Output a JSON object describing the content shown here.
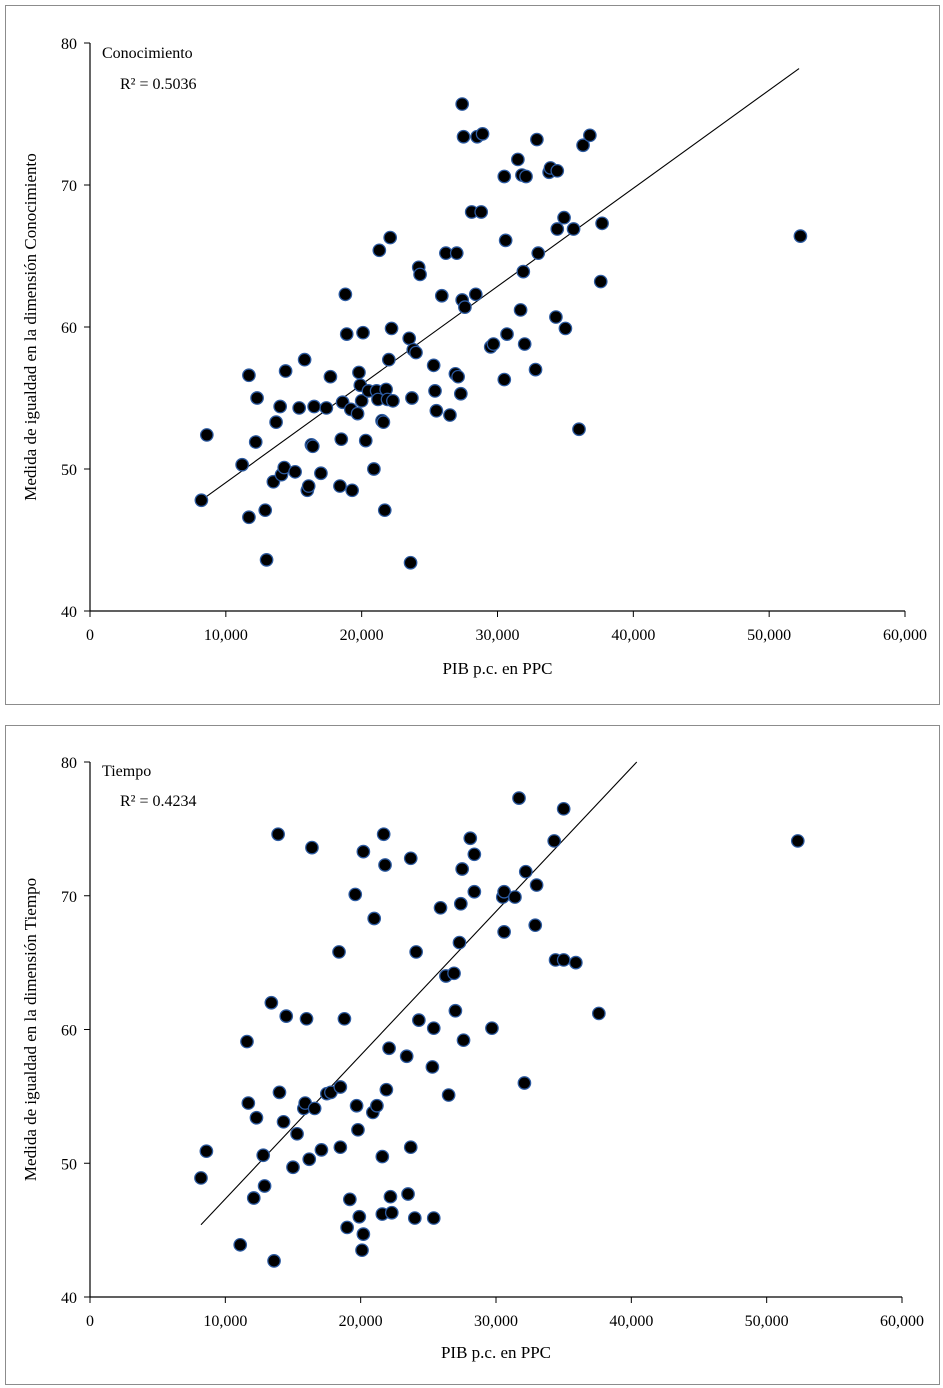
{
  "chart_data": [
    {
      "type": "scatter",
      "annotation": "Conocimiento",
      "r_squared_label": "R² = 0.5036",
      "xlabel": "PIB p.c. en PPC",
      "ylabel": "Medida de igualdad en la dimensión Conocimiento",
      "xlim": [
        0,
        60000
      ],
      "ylim": [
        40,
        80
      ],
      "x_ticks": [
        0,
        10000,
        20000,
        30000,
        40000,
        50000,
        60000
      ],
      "x_tick_labels": [
        "0",
        "10,000",
        "20,000",
        "30,000",
        "40,000",
        "50,000",
        "60,000"
      ],
      "y_ticks": [
        40,
        50,
        60,
        70,
        80
      ],
      "y_tick_labels": [
        "40",
        "50",
        "60",
        "70",
        "80"
      ],
      "trendline": {
        "x": [
          8200,
          52200
        ],
        "y": [
          47.8,
          78.2
        ]
      },
      "marker_color": "#000000",
      "marker_edge": "#2c5aa0",
      "points": [
        [
          8200,
          47.8
        ],
        [
          8600,
          52.4
        ],
        [
          11200,
          50.3
        ],
        [
          11700,
          56.6
        ],
        [
          11700,
          46.6
        ],
        [
          12200,
          51.9
        ],
        [
          12300,
          55.0
        ],
        [
          12900,
          47.1
        ],
        [
          13000,
          43.6
        ],
        [
          13500,
          49.1
        ],
        [
          13700,
          53.3
        ],
        [
          14000,
          54.4
        ],
        [
          14100,
          49.6
        ],
        [
          14300,
          50.1
        ],
        [
          14400,
          56.9
        ],
        [
          15100,
          49.8
        ],
        [
          15400,
          54.3
        ],
        [
          15800,
          57.7
        ],
        [
          16000,
          48.5
        ],
        [
          16100,
          48.8
        ],
        [
          16300,
          51.7
        ],
        [
          16400,
          51.6
        ],
        [
          16500,
          54.4
        ],
        [
          17000,
          49.7
        ],
        [
          17400,
          54.3
        ],
        [
          17700,
          56.5
        ],
        [
          18400,
          48.8
        ],
        [
          18500,
          52.1
        ],
        [
          18600,
          54.7
        ],
        [
          18800,
          62.3
        ],
        [
          18900,
          59.5
        ],
        [
          19200,
          54.2
        ],
        [
          19300,
          48.5
        ],
        [
          19700,
          53.9
        ],
        [
          19800,
          56.8
        ],
        [
          19900,
          55.9
        ],
        [
          20000,
          54.8
        ],
        [
          20100,
          59.6
        ],
        [
          20300,
          52.0
        ],
        [
          20500,
          55.5
        ],
        [
          20900,
          50.0
        ],
        [
          21100,
          55.5
        ],
        [
          21200,
          54.9
        ],
        [
          21300,
          65.4
        ],
        [
          21500,
          53.4
        ],
        [
          21600,
          53.3
        ],
        [
          21700,
          47.1
        ],
        [
          21800,
          55.6
        ],
        [
          21900,
          54.9
        ],
        [
          22000,
          57.7
        ],
        [
          22100,
          66.3
        ],
        [
          22200,
          59.9
        ],
        [
          22300,
          54.8
        ],
        [
          23500,
          59.2
        ],
        [
          23600,
          43.4
        ],
        [
          23700,
          55.0
        ],
        [
          23800,
          58.4
        ],
        [
          24000,
          58.2
        ],
        [
          24200,
          64.2
        ],
        [
          24300,
          63.7
        ],
        [
          25300,
          57.3
        ],
        [
          25400,
          55.5
        ],
        [
          25500,
          54.1
        ],
        [
          25900,
          62.2
        ],
        [
          26200,
          65.2
        ],
        [
          26500,
          53.8
        ],
        [
          26900,
          56.7
        ],
        [
          27000,
          65.2
        ],
        [
          27100,
          56.5
        ],
        [
          27300,
          55.3
        ],
        [
          27400,
          61.9
        ],
        [
          27400,
          75.7
        ],
        [
          27500,
          73.4
        ],
        [
          27600,
          61.4
        ],
        [
          28100,
          68.1
        ],
        [
          28400,
          62.3
        ],
        [
          28500,
          73.4
        ],
        [
          28800,
          68.1
        ],
        [
          28900,
          73.6
        ],
        [
          29500,
          58.6
        ],
        [
          29700,
          58.8
        ],
        [
          30500,
          56.3
        ],
        [
          30500,
          70.6
        ],
        [
          30600,
          66.1
        ],
        [
          30700,
          59.5
        ],
        [
          31500,
          71.8
        ],
        [
          31700,
          61.2
        ],
        [
          31800,
          70.7
        ],
        [
          31900,
          63.9
        ],
        [
          32000,
          58.8
        ],
        [
          32100,
          70.6
        ],
        [
          32800,
          57.0
        ],
        [
          32900,
          73.2
        ],
        [
          33000,
          65.2
        ],
        [
          33800,
          70.9
        ],
        [
          33900,
          71.2
        ],
        [
          34300,
          60.7
        ],
        [
          34400,
          66.9
        ],
        [
          34400,
          71.0
        ],
        [
          34900,
          67.7
        ],
        [
          35000,
          59.9
        ],
        [
          35600,
          66.9
        ],
        [
          36000,
          52.8
        ],
        [
          36300,
          72.8
        ],
        [
          36800,
          73.5
        ],
        [
          37600,
          63.2
        ],
        [
          37700,
          67.3
        ],
        [
          52300,
          66.4
        ]
      ]
    },
    {
      "type": "scatter",
      "annotation": "Tiempo",
      "r_squared_label": "R² = 0.4234",
      "xlabel": "PIB p.c. en PPC",
      "ylabel": "Medida de igualdad en la dimensión Tiempo",
      "xlim": [
        0,
        60000
      ],
      "ylim": [
        40,
        80
      ],
      "x_ticks": [
        0,
        10000,
        20000,
        30000,
        40000,
        50000,
        60000
      ],
      "x_tick_labels": [
        "0",
        "10,000",
        "20,000",
        "30,000",
        "40,000",
        "50,000",
        "60,000"
      ],
      "y_ticks": [
        40,
        50,
        60,
        70,
        80
      ],
      "y_tick_labels": [
        "40",
        "50",
        "60",
        "70",
        "80"
      ],
      "trendline": {
        "x": [
          8200,
          40400
        ],
        "y": [
          45.4,
          80.0
        ]
      },
      "marker_color": "#000000",
      "marker_edge": "#2c5aa0",
      "points": [
        [
          8200,
          48.9
        ],
        [
          8600,
          50.9
        ],
        [
          11100,
          43.9
        ],
        [
          11600,
          59.1
        ],
        [
          11700,
          54.5
        ],
        [
          12100,
          47.4
        ],
        [
          12300,
          53.4
        ],
        [
          12800,
          50.6
        ],
        [
          12900,
          48.3
        ],
        [
          13400,
          62.0
        ],
        [
          13600,
          42.7
        ],
        [
          13900,
          74.6
        ],
        [
          14000,
          55.3
        ],
        [
          14300,
          53.1
        ],
        [
          14500,
          61.0
        ],
        [
          15000,
          49.7
        ],
        [
          15300,
          52.2
        ],
        [
          15800,
          54.1
        ],
        [
          15900,
          54.5
        ],
        [
          16000,
          60.8
        ],
        [
          16200,
          50.3
        ],
        [
          16400,
          73.6
        ],
        [
          16600,
          54.1
        ],
        [
          17100,
          51.0
        ],
        [
          17500,
          55.2
        ],
        [
          17800,
          55.3
        ],
        [
          18400,
          65.8
        ],
        [
          18500,
          51.2
        ],
        [
          18500,
          55.7
        ],
        [
          18800,
          60.8
        ],
        [
          19000,
          45.2
        ],
        [
          19200,
          47.3
        ],
        [
          19600,
          70.1
        ],
        [
          19700,
          54.3
        ],
        [
          19800,
          52.5
        ],
        [
          19900,
          46.0
        ],
        [
          20100,
          43.5
        ],
        [
          20200,
          44.7
        ],
        [
          20200,
          73.3
        ],
        [
          20900,
          53.8
        ],
        [
          21000,
          68.3
        ],
        [
          21200,
          54.3
        ],
        [
          21600,
          46.2
        ],
        [
          21600,
          50.5
        ],
        [
          21700,
          74.6
        ],
        [
          21800,
          72.3
        ],
        [
          21900,
          55.5
        ],
        [
          22100,
          58.6
        ],
        [
          22200,
          47.5
        ],
        [
          22300,
          46.3
        ],
        [
          23400,
          58.0
        ],
        [
          23500,
          47.7
        ],
        [
          23700,
          51.2
        ],
        [
          23700,
          72.8
        ],
        [
          24000,
          45.9
        ],
        [
          24100,
          65.8
        ],
        [
          24300,
          60.7
        ],
        [
          25300,
          57.2
        ],
        [
          25400,
          60.1
        ],
        [
          25400,
          45.9
        ],
        [
          25900,
          69.1
        ],
        [
          26300,
          64.0
        ],
        [
          26500,
          55.1
        ],
        [
          26900,
          64.2
        ],
        [
          27000,
          61.4
        ],
        [
          27300,
          66.5
        ],
        [
          27400,
          69.4
        ],
        [
          27500,
          72.0
        ],
        [
          27600,
          59.2
        ],
        [
          28100,
          74.3
        ],
        [
          28400,
          70.3
        ],
        [
          28400,
          73.1
        ],
        [
          29700,
          60.1
        ],
        [
          30500,
          69.9
        ],
        [
          30600,
          67.3
        ],
        [
          30600,
          70.3
        ],
        [
          31400,
          69.9
        ],
        [
          31700,
          77.3
        ],
        [
          32100,
          56.0
        ],
        [
          32200,
          71.8
        ],
        [
          32900,
          67.8
        ],
        [
          33000,
          70.8
        ],
        [
          34300,
          74.1
        ],
        [
          34400,
          65.2
        ],
        [
          35000,
          76.5
        ],
        [
          35000,
          65.2
        ],
        [
          35900,
          65.0
        ],
        [
          37600,
          61.2
        ],
        [
          52300,
          74.1
        ]
      ]
    }
  ]
}
